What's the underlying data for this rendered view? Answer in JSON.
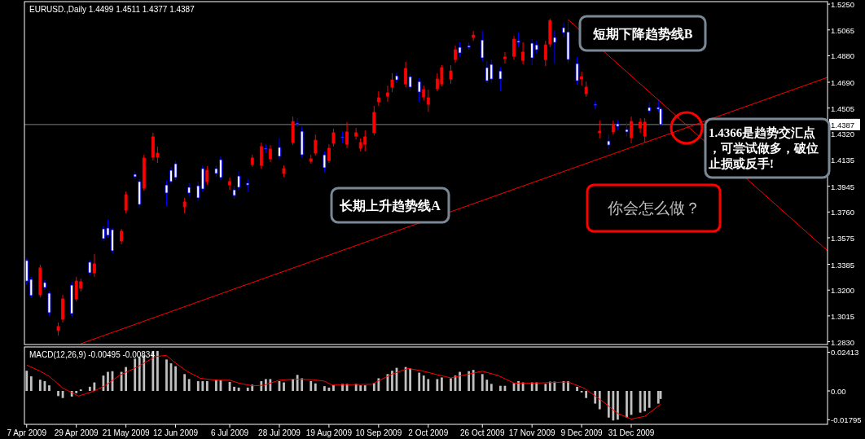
{
  "chart_data": [
    {
      "type": "candlestick",
      "title": "EURUSD.,Daily 1.4499 1.4511 1.4377 1.4387",
      "x": [
        "2009-04-07",
        "2009-04-09",
        "2009-04-13",
        "2009-04-15",
        "2009-04-17",
        "2009-04-21",
        "2009-04-23",
        "2009-04-27",
        "2009-04-29",
        "2009-05-01",
        "2009-05-05",
        "2009-05-07",
        "2009-05-11",
        "2009-05-13",
        "2009-05-15",
        "2009-05-19",
        "2009-05-21",
        "2009-05-25",
        "2009-05-27",
        "2009-05-29",
        "2009-06-02",
        "2009-06-04",
        "2009-06-08",
        "2009-06-10",
        "2009-06-12",
        "2009-06-16",
        "2009-06-18",
        "2009-06-22",
        "2009-06-24",
        "2009-06-26",
        "2009-06-30",
        "2009-07-02",
        "2009-07-06",
        "2009-07-08",
        "2009-07-10",
        "2009-07-14",
        "2009-07-16",
        "2009-07-20",
        "2009-07-22",
        "2009-07-24",
        "2009-07-28",
        "2009-07-30",
        "2009-08-03",
        "2009-08-05",
        "2009-08-07",
        "2009-08-11",
        "2009-08-13",
        "2009-08-17",
        "2009-08-19",
        "2009-08-21",
        "2009-08-25",
        "2009-08-27",
        "2009-08-31",
        "2009-09-02",
        "2009-09-04",
        "2009-09-08",
        "2009-09-10",
        "2009-09-14",
        "2009-09-16",
        "2009-09-18",
        "2009-09-22",
        "2009-09-24",
        "2009-09-28",
        "2009-09-30",
        "2009-10-02",
        "2009-10-06",
        "2009-10-08",
        "2009-10-12",
        "2009-10-14",
        "2009-10-16",
        "2009-10-20",
        "2009-10-22",
        "2009-10-26",
        "2009-10-28",
        "2009-10-30",
        "2009-11-03",
        "2009-11-05",
        "2009-11-09",
        "2009-11-11",
        "2009-11-13",
        "2009-11-17",
        "2009-11-19",
        "2009-11-23",
        "2009-11-25",
        "2009-11-27",
        "2009-12-01",
        "2009-12-03",
        "2009-12-07",
        "2009-12-09",
        "2009-12-11",
        "2009-12-15",
        "2009-12-17",
        "2009-12-21",
        "2009-12-23",
        "2009-12-25",
        "2009-12-29",
        "2009-12-31",
        "2010-01-04",
        "2010-01-06",
        "2010-01-08",
        "2010-01-12",
        "2010-01-13"
      ],
      "ohlc": [
        [
          1.3412,
          1.3429,
          1.3242,
          1.3265
        ],
        [
          1.3277,
          1.3295,
          1.3143,
          1.3161
        ],
        [
          1.3166,
          1.3382,
          1.3149,
          1.3359
        ],
        [
          1.3254,
          1.3271,
          1.3201,
          1.3219
        ],
        [
          1.3178,
          1.3195,
          1.3015,
          1.3038
        ],
        [
          1.291,
          1.2968,
          1.2875,
          1.2939
        ],
        [
          1.2991,
          1.3166,
          1.2968,
          1.3137
        ],
        [
          1.3236,
          1.326,
          1.3009,
          1.3032
        ],
        [
          1.3137,
          1.3295,
          1.312,
          1.3265
        ],
        [
          1.3213,
          1.3283,
          1.319,
          1.326
        ],
        [
          1.34,
          1.3417,
          1.3306,
          1.3324
        ],
        [
          1.3324,
          1.3458,
          1.3295,
          1.3388
        ],
        [
          1.3639,
          1.3662,
          1.3552,
          1.3569
        ],
        [
          1.3645,
          1.3703,
          1.3575,
          1.3593
        ],
        [
          1.3633,
          1.3645,
          1.3464,
          1.3482
        ],
        [
          1.3552,
          1.3639,
          1.3528,
          1.3622
        ],
        [
          1.3773,
          1.3908,
          1.375,
          1.3884
        ],
        [
          1.403,
          1.4053,
          1.3995,
          1.4013
        ],
        [
          1.3978,
          1.3995,
          1.3791,
          1.3814
        ],
        [
          1.3931,
          1.417,
          1.3913,
          1.4147
        ],
        [
          1.4153,
          1.4328,
          1.4129,
          1.4299
        ],
        [
          1.4153,
          1.4229,
          1.4112,
          1.4182
        ],
        [
          1.3954,
          1.3983,
          1.3797,
          1.3896
        ],
        [
          1.4059,
          1.4083,
          1.396,
          1.3978
        ],
        [
          1.4106,
          1.4129,
          1.3989,
          1.4007
        ],
        [
          1.3797,
          1.3861,
          1.375,
          1.3832
        ],
        [
          1.3937,
          1.3966,
          1.3872,
          1.3896
        ],
        [
          1.3948,
          1.3978,
          1.3838,
          1.3861
        ],
        [
          1.4071,
          1.4094,
          1.3902,
          1.3925
        ],
        [
          1.3978,
          1.4088,
          1.3954,
          1.4059
        ],
        [
          1.4071,
          1.4094,
          1.4013,
          1.4036
        ],
        [
          1.4135,
          1.4159,
          1.3989,
          1.4007
        ],
        [
          1.3954,
          1.4007,
          1.3919,
          1.3978
        ],
        [
          1.3919,
          1.3948,
          1.3855,
          1.3878
        ],
        [
          1.4018,
          1.4053,
          1.3913,
          1.3937
        ],
        [
          1.3966,
          1.3995,
          1.3908,
          1.3954
        ],
        [
          1.41,
          1.417,
          1.4083,
          1.4147
        ],
        [
          1.4094,
          1.4258,
          1.4071,
          1.4229
        ],
        [
          1.4217,
          1.4246,
          1.4182,
          1.4211
        ],
        [
          1.4141,
          1.424,
          1.4118,
          1.4211
        ],
        [
          1.4223,
          1.4287,
          1.4141,
          1.4159
        ],
        [
          1.4036,
          1.4094,
          1.4013,
          1.4071
        ],
        [
          1.4258,
          1.4444,
          1.424,
          1.4409
        ],
        [
          1.4398,
          1.4433,
          1.4369,
          1.4392
        ],
        [
          1.4339,
          1.4374,
          1.4153,
          1.417
        ],
        [
          1.4123,
          1.417,
          1.4106,
          1.4141
        ],
        [
          1.4182,
          1.4316,
          1.4164,
          1.4275
        ],
        [
          1.417,
          1.4194,
          1.4042,
          1.4077
        ],
        [
          1.4129,
          1.4246,
          1.4112,
          1.4217
        ],
        [
          1.4252,
          1.4357,
          1.4229,
          1.4328
        ],
        [
          1.4299,
          1.4339,
          1.4252,
          1.4293
        ],
        [
          1.4246,
          1.4404,
          1.4217,
          1.4334
        ],
        [
          1.4304,
          1.4363,
          1.4281,
          1.4328
        ],
        [
          1.4217,
          1.4287,
          1.4194,
          1.4258
        ],
        [
          1.4246,
          1.4345,
          1.4194,
          1.4299
        ],
        [
          1.4328,
          1.452,
          1.431,
          1.4474
        ],
        [
          1.455,
          1.4625,
          1.452,
          1.4579
        ],
        [
          1.459,
          1.4666,
          1.455,
          1.4614
        ],
        [
          1.4655,
          1.4754,
          1.462,
          1.4707
        ],
        [
          1.4736,
          1.476,
          1.4684,
          1.4707
        ],
        [
          1.4678,
          1.4836,
          1.4655,
          1.4789
        ],
        [
          1.473,
          1.4754,
          1.4625,
          1.4655
        ],
        [
          1.4695,
          1.4719,
          1.455,
          1.462
        ],
        [
          1.4585,
          1.4666,
          1.4561,
          1.4637
        ],
        [
          1.4532,
          1.4637,
          1.4479,
          1.4579
        ],
        [
          1.4643,
          1.4754,
          1.4625,
          1.4713
        ],
        [
          1.4678,
          1.4812,
          1.466,
          1.4795
        ],
        [
          1.4713,
          1.4812,
          1.4678,
          1.4771
        ],
        [
          1.4853,
          1.4952,
          1.483,
          1.4923
        ],
        [
          1.4941,
          1.4976,
          1.4876,
          1.49
        ],
        [
          1.4952,
          1.4976,
          1.4923,
          1.4941
        ],
        [
          1.5011,
          1.5057,
          1.4987,
          1.5028
        ],
        [
          1.4993,
          1.5057,
          1.4841,
          1.4865
        ],
        [
          1.4795,
          1.4841,
          1.4684,
          1.4701
        ],
        [
          1.4818,
          1.4853,
          1.4689,
          1.4713
        ],
        [
          1.4771,
          1.48,
          1.4625,
          1.4713
        ],
        [
          1.4859,
          1.4906,
          1.4824,
          1.4871
        ],
        [
          1.4876,
          1.5022,
          1.4853,
          1.4999
        ],
        [
          1.4987,
          1.5046,
          1.4941,
          1.4976
        ],
        [
          1.4847,
          1.4976,
          1.4818,
          1.4906
        ],
        [
          1.497,
          1.4999,
          1.4812,
          1.4865
        ],
        [
          1.4958,
          1.4987,
          1.4894,
          1.4923
        ],
        [
          1.4853,
          1.4987,
          1.4806,
          1.4958
        ],
        [
          1.4964,
          1.5145,
          1.4941,
          1.5133
        ],
        [
          1.5011,
          1.5063,
          1.4824,
          1.4976
        ],
        [
          1.5081,
          1.5116,
          1.5011,
          1.5046
        ],
        [
          1.5051,
          1.5139,
          1.4824,
          1.4853
        ],
        [
          1.4824,
          1.4871,
          1.4672,
          1.4701
        ],
        [
          1.4713,
          1.4765,
          1.4666,
          1.473
        ],
        [
          1.4608,
          1.4695,
          1.4585,
          1.4655
        ],
        [
          1.4532,
          1.4555,
          1.4497,
          1.4526
        ],
        [
          1.4328,
          1.4415,
          1.4287,
          1.4339
        ],
        [
          1.4269,
          1.4316,
          1.4211,
          1.424
        ],
        [
          1.4334,
          1.4415,
          1.4316,
          1.4386
        ],
        [
          1.4392,
          1.4421,
          1.4345,
          1.4374
        ],
        [
          1.4351,
          1.4404,
          1.4299,
          1.4334
        ],
        [
          1.4293,
          1.4444,
          1.4252,
          1.4409
        ],
        [
          1.4363,
          1.4433,
          1.4328,
          1.4404
        ],
        [
          1.4304,
          1.4433,
          1.4258,
          1.4404
        ],
        [
          1.4509,
          1.455,
          1.4462,
          1.4485
        ],
        [
          1.4509,
          1.4567,
          1.4474,
          1.4497
        ],
        [
          1.4499,
          1.4511,
          1.4377,
          1.4387
        ]
      ],
      "colors": [
        "#0000ff",
        "#0000ff",
        "#ff0000",
        "#0000ff",
        "#0000ff",
        "#ff0000",
        "#ff0000",
        "#0000ff",
        "#ff0000",
        "#ff0000",
        "#0000ff",
        "#ff0000",
        "#0000ff",
        "#0000ff",
        "#0000ff",
        "#ff0000",
        "#ff0000",
        "#0000ff",
        "#0000ff",
        "#ff0000",
        "#ff0000",
        "#ff0000",
        "#0000ff",
        "#0000ff",
        "#0000ff",
        "#ff0000",
        "#0000ff",
        "#0000ff",
        "#0000ff",
        "#ff0000",
        "#0000ff",
        "#0000ff",
        "#ff0000",
        "#0000ff",
        "#0000ff",
        "#0000ff",
        "#ff0000",
        "#ff0000",
        "#0000ff",
        "#ff0000",
        "#0000ff",
        "#ff0000",
        "#ff0000",
        "#0000ff",
        "#0000ff",
        "#ff0000",
        "#ff0000",
        "#0000ff",
        "#ff0000",
        "#ff0000",
        "#0000ff",
        "#ff0000",
        "#ff0000",
        "#ff0000",
        "#ff0000",
        "#ff0000",
        "#ff0000",
        "#ff0000",
        "#ff0000",
        "#0000ff",
        "#ff0000",
        "#0000ff",
        "#0000ff",
        "#ff0000",
        "#ff0000",
        "#ff0000",
        "#ff0000",
        "#ff0000",
        "#ff0000",
        "#0000ff",
        "#0000ff",
        "#ff0000",
        "#0000ff",
        "#0000ff",
        "#0000ff",
        "#0000ff",
        "#ff0000",
        "#ff0000",
        "#0000ff",
        "#ff0000",
        "#0000ff",
        "#0000ff",
        "#ff0000",
        "#ff0000",
        "#0000ff",
        "#0000ff",
        "#0000ff",
        "#0000ff",
        "#ff0000",
        "#ff0000",
        "#0000ff",
        "#ff0000",
        "#0000ff",
        "#ff0000",
        "#0000ff",
        "#0000ff",
        "#ff0000",
        "#ff0000",
        "#ff0000",
        "#0000ff",
        "#0000ff",
        "#0000ff"
      ],
      "series": [
        {
          "type": "line",
          "color": "#ff0000",
          "x": [
            "2009-05-01",
            "2010-03-28"
          ],
          "values": [
            1.2816,
            1.4725
          ]
        },
        {
          "type": "line",
          "color": "#ff0000",
          "x": [
            "2009-12-03",
            "2010-03-28"
          ],
          "values": [
            1.5139,
            1.3482
          ]
        }
      ],
      "ref_lines": [
        {
          "axis": "y",
          "value": 1.4387,
          "label": "1.4387",
          "color": "#808080"
        }
      ],
      "annotations": [
        "短期下降趋势线B",
        "长期上升趋势线A",
        "你会怎么做？",
        "1.4366是趋势交汇点，可尝试做多，破位止损或反手!"
      ],
      "xlim": [
        "2009-04-06",
        "2010-03-28"
      ],
      "ylim": [
        1.281,
        1.5268
      ],
      "yticks": [
        {
          "value": 1.525,
          "label": "1.5250"
        },
        {
          "value": 1.5065,
          "label": "1.5065"
        },
        {
          "value": 1.488,
          "label": "1.4880"
        },
        {
          "value": 1.469,
          "label": "1.4690"
        },
        {
          "value": 1.4505,
          "label": "1.4505"
        },
        {
          "value": 1.432,
          "label": "1.4320"
        },
        {
          "value": 1.4135,
          "label": "1.4135"
        },
        {
          "value": 1.3945,
          "label": "1.3945"
        },
        {
          "value": 1.376,
          "label": "1.3760"
        },
        {
          "value": 1.3575,
          "label": "1.3575"
        },
        {
          "value": 1.3385,
          "label": "1.3385"
        },
        {
          "value": 1.32,
          "label": "1.3200"
        },
        {
          "value": 1.3015,
          "label": "1.3015"
        },
        {
          "value": 1.283,
          "label": "1.2830"
        }
      ],
      "tick_labels": "y"
    },
    {
      "type": "bar",
      "title": "MACD(12,26,9) -0.00495 -0.00834",
      "x": [
        "2009-04-07",
        "2009-04-09",
        "2009-04-13",
        "2009-04-15",
        "2009-04-17",
        "2009-04-21",
        "2009-04-23",
        "2009-04-27",
        "2009-04-29",
        "2009-05-01",
        "2009-05-05",
        "2009-05-07",
        "2009-05-11",
        "2009-05-13",
        "2009-05-15",
        "2009-05-19",
        "2009-05-21",
        "2009-05-25",
        "2009-05-27",
        "2009-05-29",
        "2009-06-02",
        "2009-06-04",
        "2009-06-08",
        "2009-06-10",
        "2009-06-12",
        "2009-06-16",
        "2009-06-18",
        "2009-06-22",
        "2009-06-24",
        "2009-06-26",
        "2009-06-30",
        "2009-07-02",
        "2009-07-06",
        "2009-07-08",
        "2009-07-10",
        "2009-07-14",
        "2009-07-16",
        "2009-07-20",
        "2009-07-22",
        "2009-07-24",
        "2009-07-28",
        "2009-07-30",
        "2009-08-03",
        "2009-08-05",
        "2009-08-07",
        "2009-08-11",
        "2009-08-13",
        "2009-08-17",
        "2009-08-19",
        "2009-08-21",
        "2009-08-25",
        "2009-08-27",
        "2009-08-31",
        "2009-09-02",
        "2009-09-04",
        "2009-09-08",
        "2009-09-10",
        "2009-09-14",
        "2009-09-16",
        "2009-09-18",
        "2009-09-22",
        "2009-09-24",
        "2009-09-28",
        "2009-09-30",
        "2009-10-02",
        "2009-10-06",
        "2009-10-08",
        "2009-10-12",
        "2009-10-14",
        "2009-10-16",
        "2009-10-20",
        "2009-10-22",
        "2009-10-26",
        "2009-10-28",
        "2009-10-30",
        "2009-11-03",
        "2009-11-05",
        "2009-11-09",
        "2009-11-11",
        "2009-11-13",
        "2009-11-17",
        "2009-11-19",
        "2009-11-23",
        "2009-11-25",
        "2009-11-27",
        "2009-12-01",
        "2009-12-03",
        "2009-12-07",
        "2009-12-09",
        "2009-12-11",
        "2009-12-15",
        "2009-12-17",
        "2009-12-21",
        "2009-12-23",
        "2009-12-25",
        "2009-12-29",
        "2009-12-31",
        "2010-01-04",
        "2010-01-06",
        "2010-01-08",
        "2010-01-12",
        "2010-01-13"
      ],
      "series": [
        {
          "type": "bar",
          "color": "#c0c0c0",
          "values": [
            0.0126,
            0.0091,
            0.007,
            0.0061,
            0.0035,
            -0.0032,
            -0.0044,
            -0.0035,
            -0.0014,
            0.0009,
            0.0026,
            0.0053,
            0.0096,
            0.0119,
            0.0123,
            0.0119,
            0.0149,
            0.0201,
            0.021,
            0.0222,
            0.0249,
            0.0249,
            0.0196,
            0.0172,
            0.0154,
            0.0105,
            0.0074,
            0.0061,
            0.0061,
            0.0061,
            0.007,
            0.0067,
            0.0056,
            0.0026,
            0.0021,
            0.0021,
            0.0039,
            0.0061,
            0.0074,
            0.0074,
            0.0061,
            0.0053,
            0.0074,
            0.01,
            0.0079,
            0.0061,
            0.0047,
            0.003,
            0.0021,
            0.0035,
            0.0044,
            0.0044,
            0.0044,
            0.0035,
            0.0035,
            0.0049,
            0.0079,
            0.0105,
            0.0126,
            0.0144,
            0.0149,
            0.014,
            0.0114,
            0.0096,
            0.0074,
            0.0074,
            0.0084,
            0.0079,
            0.0096,
            0.0119,
            0.0123,
            0.0131,
            0.0105,
            0.007,
            0.0044,
            0.0032,
            0.0032,
            0.0049,
            0.0061,
            0.0053,
            0.0053,
            0.0053,
            0.0044,
            0.0058,
            0.0058,
            0.0061,
            0.0061,
            0.0026,
            -0.0009,
            -0.0044,
            -0.0079,
            -0.0114,
            -0.0166,
            -0.0184,
            -0.0179,
            -0.0166,
            -0.0149,
            -0.0135,
            -0.0126,
            -0.0105,
            -0.0079,
            -0.005
          ]
        },
        {
          "type": "line",
          "color": "#ff0000",
          "x": [
            "2009-04-07",
            "2009-04-13",
            "2009-04-17",
            "2009-04-23",
            "2009-04-30",
            "2009-05-07",
            "2009-05-12",
            "2009-05-18",
            "2009-05-26",
            "2009-06-03",
            "2009-06-08",
            "2009-06-11",
            "2009-06-17",
            "2009-06-23",
            "2009-06-30",
            "2009-07-06",
            "2009-07-10",
            "2009-07-16",
            "2009-07-21",
            "2009-07-28",
            "2009-08-04",
            "2009-08-12",
            "2009-08-17",
            "2009-08-20",
            "2009-08-28",
            "2009-09-07",
            "2009-09-11",
            "2009-09-16",
            "2009-09-23",
            "2009-09-29",
            "2009-10-06",
            "2009-10-12",
            "2009-10-20",
            "2009-10-26",
            "2009-11-02",
            "2009-11-09",
            "2009-11-19",
            "2009-12-03",
            "2009-12-10",
            "2009-12-18",
            "2009-12-25",
            "2009-12-31",
            "2010-01-06",
            "2010-01-13"
          ],
          "values": [
            0.0161,
            0.0123,
            0.0091,
            0.0018,
            -0.0032,
            0,
            0.0035,
            0.0096,
            0.0149,
            0.0214,
            0.0222,
            0.0184,
            0.0123,
            0.0079,
            0.0067,
            0.0067,
            0.0049,
            0.0032,
            0.0035,
            0.0067,
            0.0074,
            0.007,
            0.0061,
            0.0039,
            0.0039,
            0.0042,
            0.007,
            0.0105,
            0.014,
            0.0126,
            0.0101,
            0.0081,
            0.0105,
            0.0123,
            0.0096,
            0.0049,
            0.0049,
            0.0056,
            0.0018,
            -0.0061,
            -0.014,
            -0.0175,
            -0.0158,
            -0.0083
          ]
        }
      ],
      "xlim": [
        "2009-04-06",
        "2010-03-28"
      ],
      "ylim": [
        -0.0208,
        0.0274
      ],
      "yticks": [
        {
          "value": 0.02413,
          "label": "0.02413"
        },
        {
          "value": 0,
          "label": "0.00"
        },
        {
          "value": -0.01795,
          "label": "-0.01795"
        }
      ],
      "xticks": [
        {
          "value": "2009-04-07",
          "label": "7 Apr 2009"
        },
        {
          "value": "2009-04-29",
          "label": "29 Apr 2009"
        },
        {
          "value": "2009-05-21",
          "label": "21 May 2009"
        },
        {
          "value": "2009-06-12",
          "label": "12 Jun 2009"
        },
        {
          "value": "2009-07-06",
          "label": "6 Jul 2009"
        },
        {
          "value": "2009-07-28",
          "label": "28 Jul 2009"
        },
        {
          "value": "2009-08-19",
          "label": "19 Aug 2009"
        },
        {
          "value": "2009-09-10",
          "label": "10 Sep 2009"
        },
        {
          "value": "2009-10-02",
          "label": "2 Oct 2009"
        },
        {
          "value": "2009-10-26",
          "label": "26 Oct 2009"
        },
        {
          "value": "2009-11-17",
          "label": "17 Nov 2009"
        },
        {
          "value": "2009-12-09",
          "label": "9 Dec 2009"
        },
        {
          "value": "2009-12-31",
          "label": "31 Dec 2009"
        }
      ]
    }
  ]
}
